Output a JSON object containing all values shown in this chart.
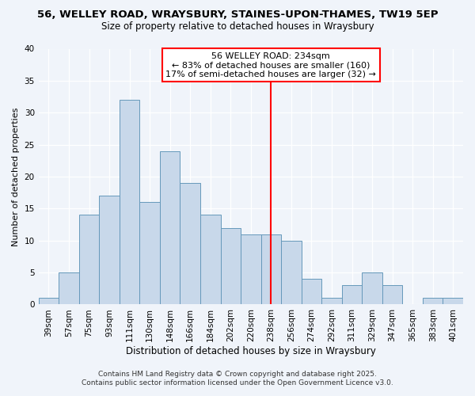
{
  "title1": "56, WELLEY ROAD, WRAYSBURY, STAINES-UPON-THAMES, TW19 5EP",
  "title2": "Size of property relative to detached houses in Wraysbury",
  "xlabel": "Distribution of detached houses by size in Wraysbury",
  "ylabel": "Number of detached properties",
  "bin_labels": [
    "39sqm",
    "57sqm",
    "75sqm",
    "93sqm",
    "111sqm",
    "130sqm",
    "148sqm",
    "166sqm",
    "184sqm",
    "202sqm",
    "220sqm",
    "238sqm",
    "256sqm",
    "274sqm",
    "292sqm",
    "311sqm",
    "329sqm",
    "347sqm",
    "365sqm",
    "383sqm",
    "401sqm"
  ],
  "bar_heights": [
    1,
    5,
    14,
    17,
    32,
    16,
    24,
    19,
    14,
    12,
    11,
    11,
    10,
    4,
    1,
    3,
    5,
    3,
    0,
    1,
    1
  ],
  "bar_color": "#c8d8ea",
  "bar_edge_color": "#6699bb",
  "vline_x": 11,
  "vline_color": "red",
  "annotation_title": "56 WELLEY ROAD: 234sqm",
  "annotation_line1": "← 83% of detached houses are smaller (160)",
  "annotation_line2": "17% of semi-detached houses are larger (32) →",
  "box_facecolor": "white",
  "box_edgecolor": "red",
  "ylim": [
    0,
    40
  ],
  "yticks": [
    0,
    5,
    10,
    15,
    20,
    25,
    30,
    35,
    40
  ],
  "footnote1": "Contains HM Land Registry data © Crown copyright and database right 2025.",
  "footnote2": "Contains public sector information licensed under the Open Government Licence v3.0.",
  "bg_color": "#f0f4fa",
  "grid_color": "#ffffff",
  "title1_fontsize": 9.5,
  "title2_fontsize": 8.5,
  "xlabel_fontsize": 8.5,
  "ylabel_fontsize": 8.0,
  "tick_fontsize": 7.5,
  "annotation_fontsize": 8.0,
  "footnote_fontsize": 6.5
}
